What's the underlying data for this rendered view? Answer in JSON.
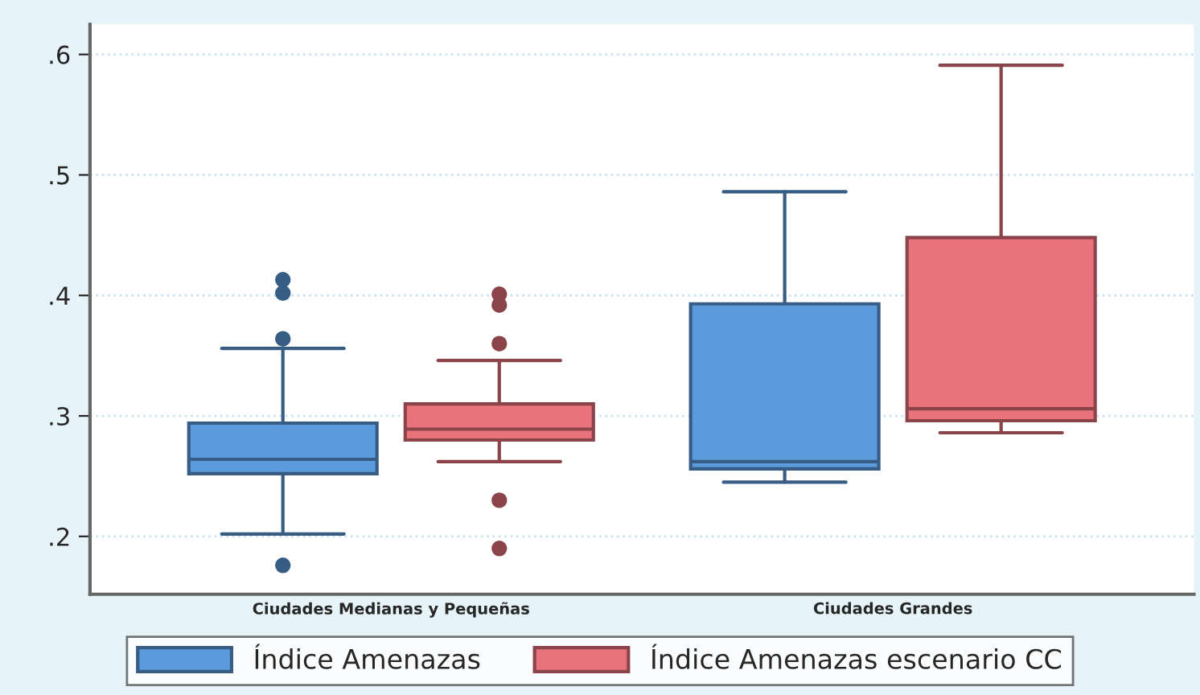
{
  "chart_data": {
    "type": "box",
    "categories": [
      "Ciudades Medianas y Pequeñas",
      "Ciudades Grandes"
    ],
    "series": [
      {
        "name": "Índice Amenazas",
        "color": "#5b9bdc",
        "boxes": [
          {
            "low": 0.202,
            "q1": 0.252,
            "median": 0.264,
            "q3": 0.294,
            "high": 0.356,
            "outliers": [
              0.413,
              0.402,
              0.364,
              0.176
            ]
          },
          {
            "low": 0.245,
            "q1": 0.256,
            "median": 0.262,
            "q3": 0.393,
            "high": 0.486
          }
        ]
      },
      {
        "name": "Índice Amenazas escenario CC",
        "color": "#e8737c",
        "boxes": [
          {
            "low": 0.262,
            "q1": 0.28,
            "median": 0.289,
            "q3": 0.31,
            "high": 0.346,
            "outliers": [
              0.401,
              0.392,
              0.36,
              0.23,
              0.19
            ]
          },
          {
            "low": 0.286,
            "q1": 0.296,
            "median": 0.306,
            "q3": 0.448,
            "high": 0.591
          }
        ]
      }
    ],
    "ylim": [
      0.152,
      0.625
    ],
    "yticks": [
      {
        "value": 0.2,
        "label": ".2"
      },
      {
        "value": 0.3,
        "label": ".3"
      },
      {
        "value": 0.4,
        "label": ".4"
      },
      {
        "value": 0.5,
        "label": ".5"
      },
      {
        "value": 0.6,
        "label": ".6"
      }
    ],
    "grid": "y",
    "legend": "bottom"
  }
}
